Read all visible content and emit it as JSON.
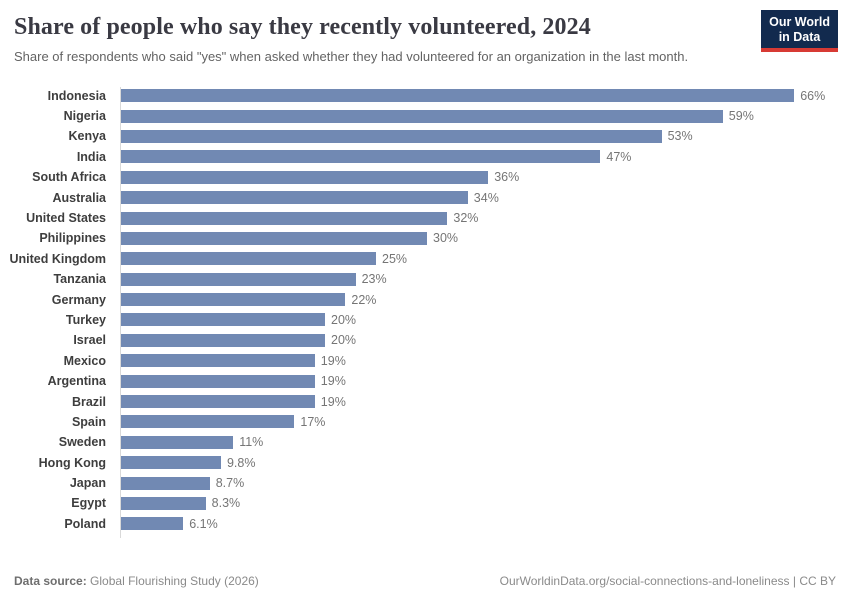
{
  "header": {
    "title": "Share of people who say they recently volunteered, 2024",
    "subtitle": "Share of respondents who said \"yes\" when asked whether they had volunteered for an organization in the last month.",
    "logo": {
      "line1": "Our World",
      "line2": "in Data",
      "bg_color": "#122a4e",
      "accent_color": "#d73a34"
    }
  },
  "chart_data": {
    "type": "bar",
    "orientation": "horizontal",
    "title": "Share of people who say they recently volunteered, 2024",
    "xlabel": "",
    "ylabel": "",
    "xlim": [
      0,
      70
    ],
    "grid": false,
    "legend": "none",
    "value_labels_shown": true,
    "bar_color": "#7189b3",
    "categories": [
      "Indonesia",
      "Nigeria",
      "Kenya",
      "India",
      "South Africa",
      "Australia",
      "United States",
      "Philippines",
      "United Kingdom",
      "Tanzania",
      "Germany",
      "Turkey",
      "Israel",
      "Mexico",
      "Argentina",
      "Brazil",
      "Spain",
      "Sweden",
      "Hong Kong",
      "Japan",
      "Egypt",
      "Poland"
    ],
    "values": [
      66,
      59,
      53,
      47,
      36,
      34,
      32,
      30,
      25,
      23,
      22,
      20,
      20,
      19,
      19,
      19,
      17,
      11,
      9.8,
      8.7,
      8.3,
      6.1
    ],
    "value_labels": [
      "66%",
      "59%",
      "53%",
      "47%",
      "36%",
      "34%",
      "32%",
      "30%",
      "25%",
      "23%",
      "22%",
      "20%",
      "20%",
      "19%",
      "19%",
      "19%",
      "17%",
      "11%",
      "9.8%",
      "8.7%",
      "8.3%",
      "6.1%"
    ]
  },
  "footer": {
    "source_label": "Data source:",
    "source_value": "Global Flourishing Study (2026)",
    "credit": "OurWorldinData.org/social-connections-and-loneliness | CC BY"
  }
}
